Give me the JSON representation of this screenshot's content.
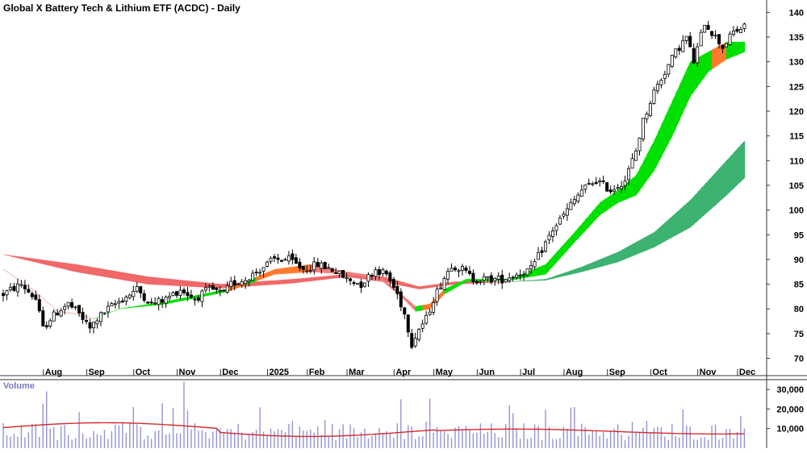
{
  "chart_data": {
    "type": "candlestick",
    "title": "Global X Battery Tech & Lithium ETF (ACDC) - Daily",
    "price_axis": {
      "ticks": [
        "140",
        "135",
        "130",
        "125",
        "120",
        "115",
        "110",
        "105",
        "100",
        "95",
        "90",
        "85",
        "80",
        "75",
        "70"
      ],
      "ylim": [
        66.5,
        142.5
      ],
      "side": "right"
    },
    "months": [
      "Aug",
      "Sep",
      "Oct",
      "Nov",
      "Dec",
      "2025",
      "Feb",
      "Mar",
      "Apr",
      "May",
      "Jun",
      "Jul",
      "Aug",
      "Sep",
      "Oct",
      "Nov",
      "Dec"
    ],
    "price_path": [
      [
        0,
        83
      ],
      [
        5,
        85
      ],
      [
        9,
        82
      ],
      [
        11,
        76
      ],
      [
        13,
        78
      ],
      [
        16,
        80
      ],
      [
        18,
        81
      ],
      [
        21,
        79
      ],
      [
        24,
        76
      ],
      [
        26,
        78
      ],
      [
        29,
        80
      ],
      [
        33,
        82
      ],
      [
        37,
        84
      ],
      [
        41,
        81
      ],
      [
        45,
        82
      ],
      [
        49,
        84
      ],
      [
        53,
        82
      ],
      [
        57,
        84
      ],
      [
        61,
        83
      ],
      [
        63,
        85
      ],
      [
        67,
        86
      ],
      [
        71,
        88
      ],
      [
        75,
        90
      ],
      [
        79,
        90
      ],
      [
        83,
        88
      ],
      [
        87,
        89
      ],
      [
        91,
        88
      ],
      [
        95,
        86
      ],
      [
        99,
        85
      ],
      [
        103,
        88
      ],
      [
        106,
        87
      ],
      [
        109,
        83
      ],
      [
        111,
        79
      ],
      [
        113,
        73
      ],
      [
        115,
        76
      ],
      [
        117,
        78
      ],
      [
        119,
        82
      ],
      [
        121,
        85
      ],
      [
        124,
        89
      ],
      [
        127,
        88
      ],
      [
        130,
        86
      ],
      [
        134,
        86
      ],
      [
        138,
        86
      ],
      [
        142,
        87
      ],
      [
        146,
        88
      ],
      [
        149,
        92
      ],
      [
        152,
        96
      ],
      [
        156,
        100
      ],
      [
        160,
        104
      ],
      [
        164,
        106
      ],
      [
        168,
        104
      ],
      [
        172,
        106
      ],
      [
        175,
        112
      ],
      [
        177,
        118
      ],
      [
        180,
        124
      ],
      [
        183,
        128
      ],
      [
        186,
        132
      ],
      [
        189,
        135
      ],
      [
        191,
        130
      ],
      [
        194,
        138
      ],
      [
        197,
        135
      ],
      [
        199,
        133
      ],
      [
        202,
        136
      ],
      [
        205,
        137
      ]
    ],
    "ribbons": {
      "short_term_top": [
        [
          0,
          88
        ],
        [
          8,
          84
        ],
        [
          15,
          79.5
        ],
        [
          20,
          79
        ],
        [
          25,
          78
        ],
        [
          32,
          80
        ],
        [
          45,
          81.5
        ],
        [
          62,
          84
        ],
        [
          75,
          88
        ],
        [
          85,
          89
        ],
        [
          95,
          87.5
        ],
        [
          100,
          87
        ],
        [
          105,
          86
        ],
        [
          110,
          83
        ],
        [
          114,
          80.5
        ],
        [
          118,
          81
        ],
        [
          122,
          84
        ],
        [
          128,
          86
        ],
        [
          140,
          86
        ],
        [
          150,
          89
        ],
        [
          158,
          95.5
        ],
        [
          165,
          101.5
        ],
        [
          170,
          104
        ],
        [
          175,
          107
        ],
        [
          180,
          114
        ],
        [
          185,
          122
        ],
        [
          190,
          130
        ],
        [
          195,
          132
        ],
        [
          200,
          134
        ],
        [
          205,
          134
        ]
      ],
      "short_term_bottom": [
        [
          0,
          88
        ],
        [
          8,
          84
        ],
        [
          15,
          79.5
        ],
        [
          20,
          79
        ],
        [
          25,
          78
        ],
        [
          32,
          80
        ],
        [
          45,
          81
        ],
        [
          62,
          83.5
        ],
        [
          75,
          87
        ],
        [
          85,
          87.5
        ],
        [
          95,
          87
        ],
        [
          100,
          86.5
        ],
        [
          105,
          85.5
        ],
        [
          110,
          82.5
        ],
        [
          114,
          79.5
        ],
        [
          118,
          80
        ],
        [
          122,
          83
        ],
        [
          128,
          85.5
        ],
        [
          140,
          85.8
        ],
        [
          150,
          87
        ],
        [
          158,
          93.5
        ],
        [
          165,
          99
        ],
        [
          170,
          101.5
        ],
        [
          175,
          103
        ],
        [
          180,
          108
        ],
        [
          185,
          115
        ],
        [
          190,
          123
        ],
        [
          195,
          128
        ],
        [
          200,
          130.5
        ],
        [
          205,
          132
        ]
      ],
      "long_term_top": [
        [
          0,
          91
        ],
        [
          20,
          89
        ],
        [
          40,
          86.5
        ],
        [
          60,
          85
        ],
        [
          80,
          86
        ],
        [
          95,
          87
        ],
        [
          105,
          86.5
        ],
        [
          115,
          84.5
        ],
        [
          125,
          85.5
        ],
        [
          140,
          85.5
        ],
        [
          150,
          86
        ],
        [
          160,
          88.5
        ],
        [
          170,
          91.5
        ],
        [
          180,
          95.5
        ],
        [
          190,
          102
        ],
        [
          200,
          110
        ],
        [
          205,
          114
        ]
      ],
      "long_term_bottom": [
        [
          0,
          91
        ],
        [
          20,
          87.5
        ],
        [
          40,
          85
        ],
        [
          60,
          84.2
        ],
        [
          80,
          85.2
        ],
        [
          95,
          86.5
        ],
        [
          105,
          85.5
        ],
        [
          115,
          84
        ],
        [
          125,
          85
        ],
        [
          140,
          85.5
        ],
        [
          150,
          85.8
        ],
        [
          160,
          87.5
        ],
        [
          170,
          89.5
        ],
        [
          180,
          92.5
        ],
        [
          190,
          96.5
        ],
        [
          200,
          103
        ],
        [
          205,
          106.5
        ]
      ]
    },
    "volume": {
      "title": "Volume",
      "ticks": [
        "30,000",
        "20,000",
        "10,000"
      ],
      "ylim": [
        0,
        35000
      ],
      "average": 8500
    },
    "colors": {
      "background": "#ffffff",
      "candle": "#000000",
      "short_ribbon_up": "#00e000",
      "short_ribbon_down": "#f08080",
      "short_ribbon_transition": "#ff7a2c",
      "long_ribbon_up": "#3cb371",
      "long_ribbon_down": "#f06868",
      "volume_bar": "#9393d6",
      "volume_avg": "#d62828",
      "volume_label": "#7777c0",
      "axis": "#333333"
    }
  }
}
